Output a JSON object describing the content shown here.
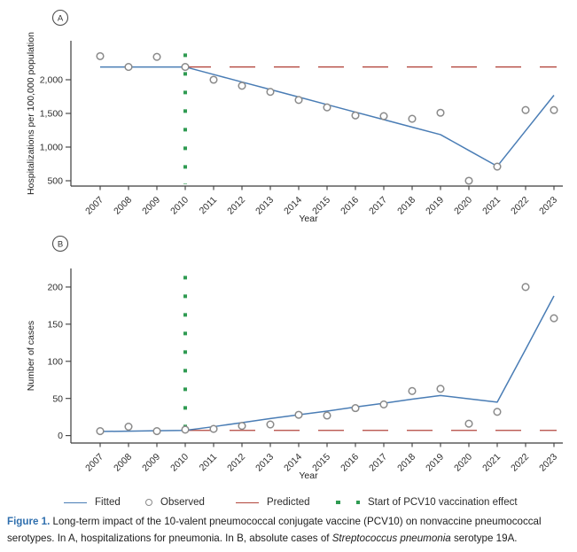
{
  "colors": {
    "fitted": "#4a7db5",
    "observed": "#8a8a8a",
    "predicted": "#b2453c",
    "vline": "#2f9b52",
    "axis": "#3c3c3c",
    "figure_label": "#2f6fae"
  },
  "legend": {
    "items": [
      {
        "label": "Fitted",
        "type": "line"
      },
      {
        "label": "Observed",
        "type": "circle"
      },
      {
        "label": "Predicted",
        "type": "line"
      },
      {
        "label": "Start of PCV10 vaccination effect",
        "type": "squares"
      }
    ]
  },
  "caption": {
    "label": "Figure 1.",
    "text_before_italic": " Long-term impact of the 10-valent pneumococcal conjugate vaccine (PCV10) on nonvaccine pneumococcal serotypes. In A, hospitalizations for pneumonia. In B, absolute cases of ",
    "italic_text": "Streptococcus pneumonia",
    "text_after_italic": " serotype 19A."
  },
  "chart_data": [
    {
      "type": "line",
      "panel_label": "A",
      "xlabel": "Year",
      "ylabel": "Hospitalizations per 100,000 population",
      "years": [
        2007,
        2008,
        2009,
        2010,
        2011,
        2012,
        2013,
        2014,
        2015,
        2016,
        2017,
        2018,
        2019,
        2020,
        2021,
        2022,
        2023
      ],
      "yticks": [
        500,
        1000,
        1500,
        2000
      ],
      "ylim": [
        421,
        2579
      ],
      "grid": false,
      "series": [
        {
          "name": "Fitted",
          "type": "fitted",
          "values": [
            2190,
            2190,
            2190,
            2190,
            2078,
            1966,
            1855,
            1743,
            1631,
            1519,
            1408,
            1296,
            1185,
            950,
            715,
            1243,
            1770
          ]
        },
        {
          "name": "Observed",
          "type": "observed",
          "values": [
            2350,
            2190,
            2340,
            2190,
            2000,
            1910,
            1820,
            1700,
            1590,
            1470,
            1460,
            1420,
            1510,
            500,
            710,
            1550,
            1550
          ]
        },
        {
          "name": "Predicted",
          "type": "predicted",
          "value": 2190,
          "from_year": 2010,
          "to_year": 2023
        },
        {
          "name": "Start of PCV10 vaccination effect",
          "type": "vline",
          "year": 2010,
          "top_value": 2390
        }
      ]
    },
    {
      "type": "line",
      "panel_label": "B",
      "xlabel": "Year",
      "ylabel": "Number of cases",
      "years": [
        2007,
        2008,
        2009,
        2010,
        2011,
        2012,
        2013,
        2014,
        2015,
        2016,
        2017,
        2018,
        2019,
        2020,
        2021,
        2022,
        2023
      ],
      "yticks": [
        0,
        50,
        100,
        150,
        200
      ],
      "ylim": [
        -10,
        225
      ],
      "grid": false,
      "series": [
        {
          "name": "Fitted",
          "type": "fitted",
          "values": [
            5.5,
            6,
            6.5,
            7,
            12,
            17.5,
            23,
            28,
            33,
            38.5,
            43.5,
            49,
            54,
            49.5,
            45,
            116,
            188
          ]
        },
        {
          "name": "Observed",
          "type": "observed",
          "values": [
            6,
            12,
            6,
            8,
            9,
            13,
            15,
            28,
            27,
            37,
            42,
            60,
            63,
            16,
            32,
            200,
            158
          ]
        },
        {
          "name": "Predicted",
          "type": "predicted",
          "value": 7,
          "from_year": 2010,
          "to_year": 2023
        },
        {
          "name": "Start of PCV10 vaccination effect",
          "type": "vline",
          "year": 2010,
          "top_value": 215
        }
      ]
    }
  ]
}
